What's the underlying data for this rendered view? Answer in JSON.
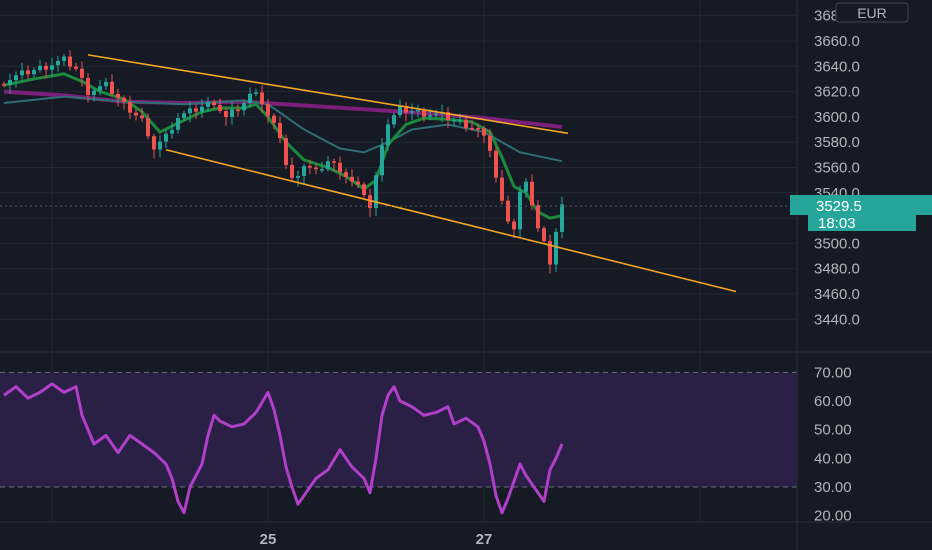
{
  "colors": {
    "background": "#161a25",
    "grid": "#232733",
    "axis_text": "#b2b5be",
    "up": "#26a69a",
    "down": "#ef5350",
    "ma_fast": "#1b8a3a",
    "ma_mid": "#2f6f73",
    "ma_slow": "#7b1f7a",
    "trendline": "#f5a623",
    "rsi": "#b13fc9",
    "rsi_band": "#2a1f45",
    "badge_price": "#26a69a",
    "badge_text": "#ffffff"
  },
  "price_axis": {
    "currency": "EUR",
    "last_price": "3529.5",
    "countdown": "18:03"
  },
  "time_axis": {
    "labels": [
      "25",
      "27"
    ]
  },
  "chart_data": [
    {
      "type": "candlestick",
      "ylim": [
        3430,
        3690
      ],
      "yticks": [
        "3680.0",
        "3660.0",
        "3640.0",
        "3620.0",
        "3600.0",
        "3580.0",
        "3560.0",
        "3540.0",
        "3520.0",
        "3500.0",
        "3480.0",
        "3460.0",
        "3440.0"
      ],
      "close_path": [
        [
          0,
          3628
        ],
        [
          3,
          3634
        ],
        [
          7,
          3640
        ],
        [
          10,
          3645
        ],
        [
          12,
          3638
        ],
        [
          14,
          3620
        ],
        [
          17,
          3625
        ],
        [
          20,
          3610
        ],
        [
          23,
          3598
        ],
        [
          24,
          3582
        ],
        [
          25,
          3576
        ],
        [
          27,
          3585
        ],
        [
          29,
          3600
        ],
        [
          32,
          3606
        ],
        [
          35,
          3612
        ],
        [
          37,
          3599
        ],
        [
          40,
          3611
        ],
        [
          42,
          3622
        ],
        [
          44,
          3600
        ],
        [
          46,
          3585
        ],
        [
          47,
          3562
        ],
        [
          48,
          3550
        ],
        [
          50,
          3562
        ],
        [
          52,
          3556
        ],
        [
          54,
          3565
        ],
        [
          56,
          3559
        ],
        [
          58,
          3548
        ],
        [
          60,
          3540
        ],
        [
          61,
          3528
        ],
        [
          62,
          3552
        ],
        [
          63,
          3580
        ],
        [
          64,
          3595
        ],
        [
          66,
          3606
        ],
        [
          70,
          3603
        ],
        [
          73,
          3601
        ],
        [
          76,
          3596
        ],
        [
          79,
          3590
        ],
        [
          81,
          3575
        ],
        [
          82,
          3552
        ],
        [
          83,
          3532
        ],
        [
          84,
          3520
        ],
        [
          85,
          3512
        ],
        [
          86,
          3540
        ],
        [
          87,
          3546
        ],
        [
          88,
          3532
        ],
        [
          89,
          3512
        ],
        [
          90,
          3500
        ],
        [
          91,
          3486
        ],
        [
          92,
          3510
        ],
        [
          93,
          3530
        ]
      ],
      "ma_fast_path": [
        [
          0,
          3625
        ],
        [
          5,
          3630
        ],
        [
          10,
          3634
        ],
        [
          13,
          3628
        ],
        [
          16,
          3620
        ],
        [
          20,
          3614
        ],
        [
          23,
          3604
        ],
        [
          26,
          3588
        ],
        [
          29,
          3595
        ],
        [
          33,
          3604
        ],
        [
          36,
          3607
        ],
        [
          40,
          3607
        ],
        [
          42,
          3610
        ],
        [
          44,
          3600
        ],
        [
          47,
          3580
        ],
        [
          50,
          3566
        ],
        [
          54,
          3560
        ],
        [
          57,
          3553
        ],
        [
          60,
          3543
        ],
        [
          62,
          3550
        ],
        [
          64,
          3578
        ],
        [
          67,
          3594
        ],
        [
          70,
          3599
        ],
        [
          74,
          3598
        ],
        [
          78,
          3596
        ],
        [
          81,
          3588
        ],
        [
          83,
          3568
        ],
        [
          85,
          3545
        ],
        [
          87,
          3540
        ],
        [
          89,
          3525
        ],
        [
          91,
          3520
        ],
        [
          93,
          3522
        ]
      ],
      "ma_mid_path": [
        [
          0,
          3611
        ],
        [
          10,
          3616
        ],
        [
          20,
          3612
        ],
        [
          30,
          3610
        ],
        [
          40,
          3613
        ],
        [
          44,
          3610
        ],
        [
          50,
          3590
        ],
        [
          56,
          3575
        ],
        [
          60,
          3572
        ],
        [
          64,
          3580
        ],
        [
          68,
          3590
        ],
        [
          74,
          3594
        ],
        [
          80,
          3588
        ],
        [
          86,
          3572
        ],
        [
          93,
          3565
        ]
      ],
      "ma_slow_path": [
        [
          0,
          3620
        ],
        [
          10,
          3617
        ],
        [
          20,
          3612
        ],
        [
          30,
          3611
        ],
        [
          40,
          3612
        ],
        [
          50,
          3609
        ],
        [
          60,
          3606
        ],
        [
          70,
          3603
        ],
        [
          80,
          3599
        ],
        [
          93,
          3592
        ]
      ],
      "trendlines": [
        {
          "from": [
            14,
            3649
          ],
          "to": [
            94,
            3587
          ]
        },
        {
          "from": [
            27,
            3574
          ],
          "to": [
            122,
            3462
          ]
        }
      ]
    },
    {
      "type": "line",
      "series": [
        {
          "points": [
            [
              0,
              62
            ],
            [
              2,
              65
            ],
            [
              4,
              61
            ],
            [
              6,
              63
            ],
            [
              8,
              66
            ],
            [
              10,
              63
            ],
            [
              12,
              65
            ],
            [
              13,
              55
            ],
            [
              15,
              45
            ],
            [
              17,
              48
            ],
            [
              19,
              42
            ],
            [
              21,
              48
            ],
            [
              23,
              45
            ],
            [
              25,
              42
            ],
            [
              27,
              38
            ],
            [
              28,
              33
            ],
            [
              29,
              25
            ],
            [
              30,
              21
            ],
            [
              31,
              30
            ],
            [
              33,
              38
            ],
            [
              34,
              48
            ],
            [
              35,
              55
            ],
            [
              36,
              53
            ],
            [
              38,
              51
            ],
            [
              40,
              52
            ],
            [
              42,
              56
            ],
            [
              44,
              63
            ],
            [
              45,
              57
            ],
            [
              46,
              48
            ],
            [
              47,
              37
            ],
            [
              48,
              30
            ],
            [
              49,
              24
            ],
            [
              50,
              27
            ],
            [
              52,
              33
            ],
            [
              54,
              36
            ],
            [
              56,
              43
            ],
            [
              58,
              37
            ],
            [
              60,
              33
            ],
            [
              61,
              28
            ],
            [
              62,
              40
            ],
            [
              63,
              55
            ],
            [
              64,
              62
            ],
            [
              65,
              65
            ],
            [
              66,
              60
            ],
            [
              68,
              58
            ],
            [
              70,
              55
            ],
            [
              72,
              56
            ],
            [
              74,
              58
            ],
            [
              75,
              52
            ],
            [
              77,
              54
            ],
            [
              79,
              51
            ],
            [
              80,
              46
            ],
            [
              81,
              38
            ],
            [
              82,
              27
            ],
            [
              83,
              21
            ],
            [
              84,
              26
            ],
            [
              85,
              32
            ],
            [
              86,
              38
            ],
            [
              87,
              34
            ],
            [
              88,
              31
            ],
            [
              89,
              28
            ],
            [
              90,
              25
            ],
            [
              91,
              36
            ],
            [
              92,
              40
            ],
            [
              93,
              45
            ]
          ]
        }
      ],
      "ylim": [
        15,
        75
      ],
      "yticks": [
        "70.00",
        "60.00",
        "50.00",
        "40.00",
        "30.00",
        "20.00"
      ],
      "band": [
        30,
        70
      ]
    }
  ]
}
